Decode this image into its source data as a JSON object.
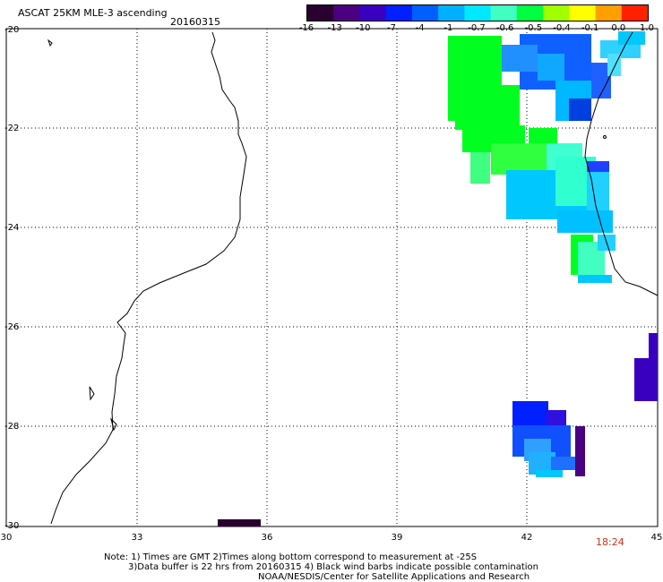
{
  "header": {
    "title": "ASCAT 25KM MLE-3 ascending",
    "date": "20160315"
  },
  "colorbar": {
    "labels": [
      "-16",
      "-13",
      "-10",
      "-7",
      "-4",
      "-1",
      "-0.7",
      "-0.6",
      "-0.5",
      "-0.4",
      "-0.1",
      "0.0",
      "1.0"
    ],
    "colors": [
      "#2a0030",
      "#4a0080",
      "#3a00c0",
      "#0020ff",
      "#0060ff",
      "#00b0ff",
      "#00e8ff",
      "#40ffc0",
      "#00ff40",
      "#a0ff00",
      "#ffff00",
      "#ffa000",
      "#ff2000"
    ]
  },
  "axes": {
    "lat_labels": [
      "-20",
      "-22",
      "-24",
      "-26",
      "-28",
      "-30"
    ],
    "lon_labels": [
      "30",
      "33",
      "36",
      "39",
      "42",
      "45"
    ]
  },
  "time_label": "18:24",
  "notes": {
    "line1": "Note: 1) Times are GMT 2)Times along bottom correspond to measurement at -25S",
    "line2": "3)Data buffer is 22 hrs from 20160315 4) Black wind barbs indicate possible contamination",
    "line3": "NOAA/NESDIS/Center for Satellite Applications and Research"
  }
}
